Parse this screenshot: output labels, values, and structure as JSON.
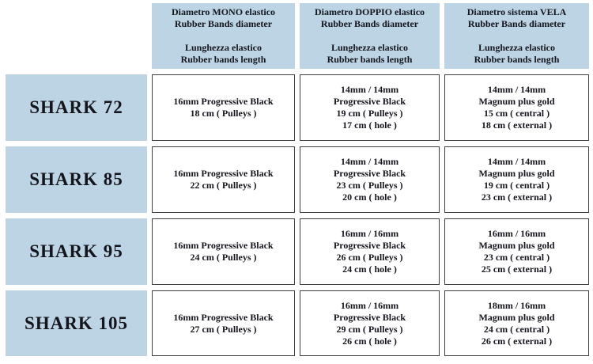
{
  "title": "Shark speargun rubber bands specification table",
  "colors": {
    "cell_bg": "#BCD4E4",
    "cell_border": "#3e3e3e",
    "text": "#15151d",
    "background": "#ffffff"
  },
  "headers": {
    "mono": [
      "Diametro MONO elastico",
      "Rubber Bands diameter",
      "",
      "Lunghezza elastico",
      "Rubber bands length"
    ],
    "doppio": [
      "Diametro DOPPIO elastico",
      "Rubber Bands diameter",
      "",
      "Lunghezza elastico",
      "Rubber bands length"
    ],
    "vela": [
      "Diametro sistema VELA",
      "Rubber Bands diameter",
      "",
      "Lunghezza elastico",
      "Rubber bands length"
    ]
  },
  "rows": [
    {
      "model": "SHARK 72",
      "mono": [
        "16mm Progressive Black",
        "18 cm ( Pulleys )"
      ],
      "doppio": [
        "14mm / 14mm",
        "Progressive Black",
        "19 cm ( Pulleys )",
        "17 cm ( hole )"
      ],
      "vela": [
        "14mm / 14mm",
        "Magnum plus gold",
        "15 cm ( central )",
        "18 cm ( external )"
      ]
    },
    {
      "model": "SHARK 85",
      "mono": [
        "16mm Progressive Black",
        "22 cm ( Pulleys )"
      ],
      "doppio": [
        "14mm / 14mm",
        "Progressive Black",
        "23 cm ( Pulleys )",
        "20 cm ( hole )"
      ],
      "vela": [
        "14mm / 14mm",
        "Magnum plus gold",
        "19 cm ( central )",
        "23 cm ( external )"
      ]
    },
    {
      "model": "SHARK 95",
      "mono": [
        "16mm Progressive Black",
        "24 cm ( Pulleys )"
      ],
      "doppio": [
        "16mm / 16mm",
        "Progressive Black",
        "26 cm ( Pulleys )",
        "24 cm ( hole )"
      ],
      "vela": [
        "16mm / 16mm",
        "Magnum plus gold",
        "23 cm ( central )",
        "25 cm ( external )"
      ]
    },
    {
      "model": "SHARK 105",
      "mono": [
        "16mm Progressive Black",
        "27 cm ( Pulleys )"
      ],
      "doppio": [
        "16mm / 16mm",
        "Progressive Black",
        "29 cm ( Pulleys )",
        "26 cm ( hole )"
      ],
      "vela": [
        "18mm / 16mm",
        "Magnum plus gold",
        "24 cm ( central )",
        "26 cm ( external )"
      ]
    }
  ]
}
